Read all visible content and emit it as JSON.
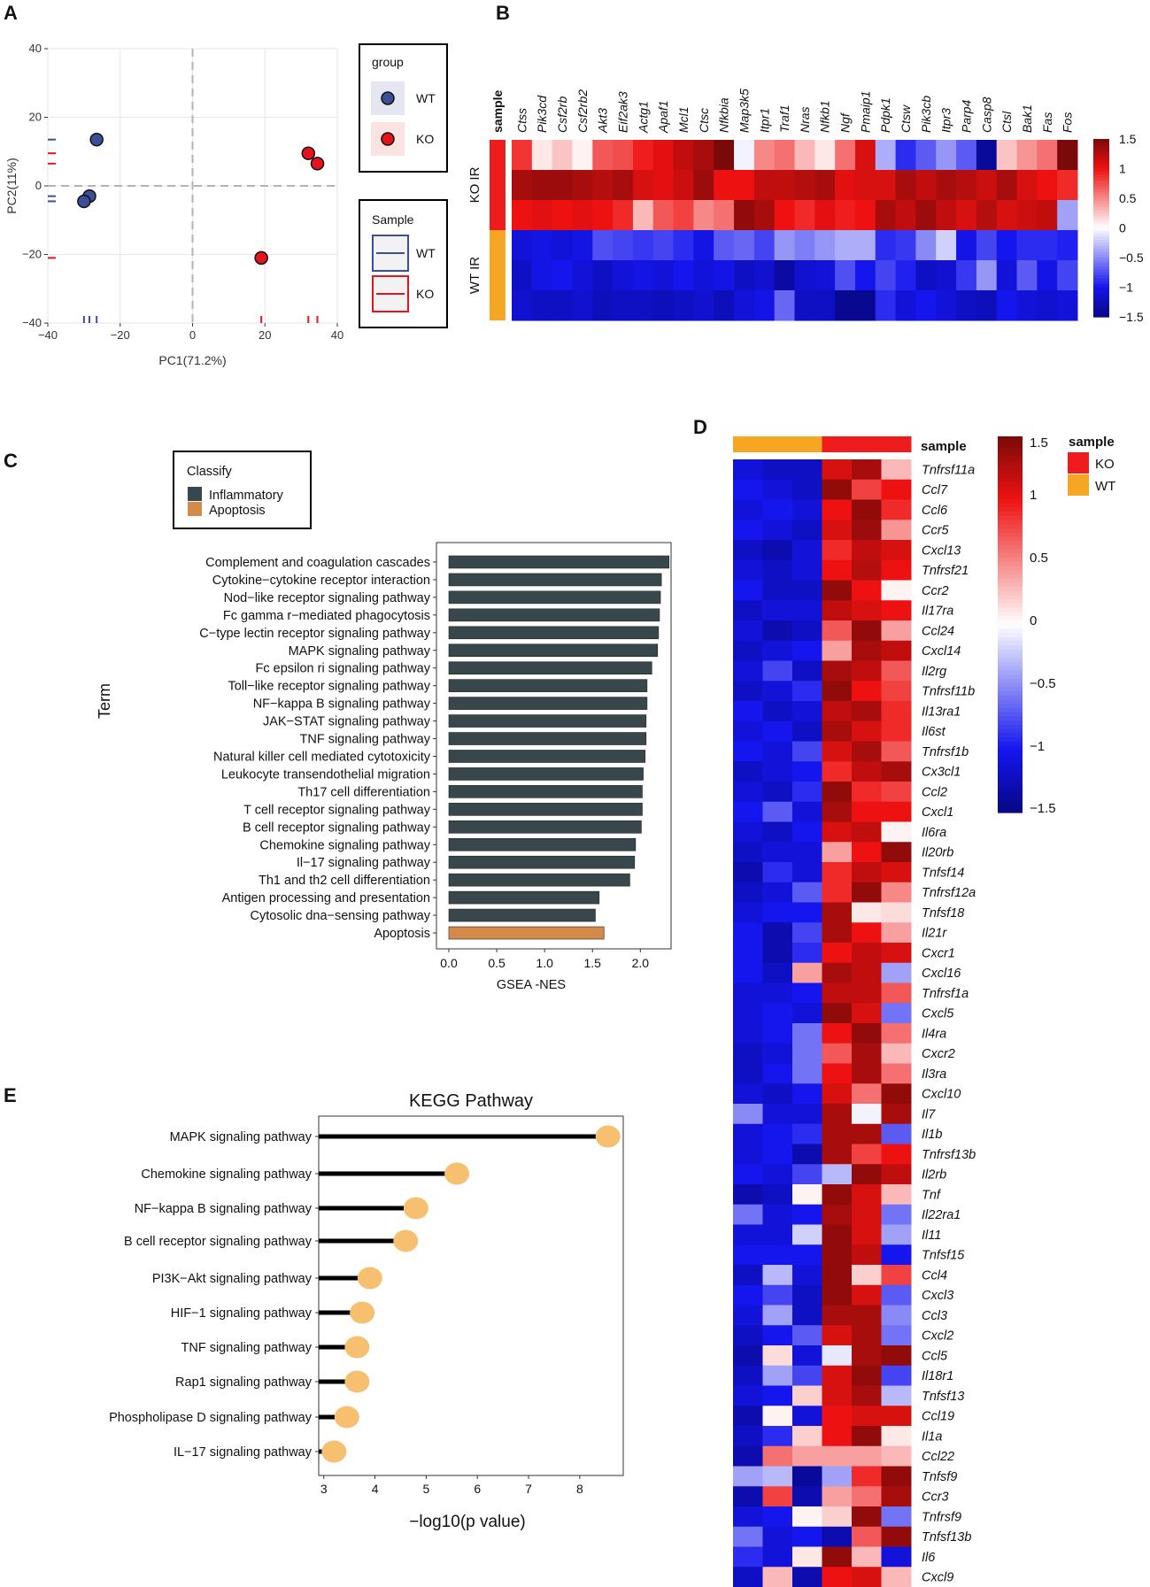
{
  "panel_labels": [
    "A",
    "B",
    "C",
    "D",
    "E"
  ],
  "chart_data": [
    {
      "panel": "A",
      "type": "scatter",
      "xlabel": "PC1(71.2%)",
      "ylabel": "PC2(11%)",
      "xlim": [
        -40,
        40
      ],
      "ylim": [
        -40,
        40
      ],
      "xticks": [
        -40,
        -20,
        0,
        20,
        40
      ],
      "yticks": [
        -40,
        -20,
        0,
        20,
        40
      ],
      "grid": true,
      "series": [
        {
          "name": "WT",
          "color": "#3a4f96",
          "points": [
            [
              -26.5,
              13.5
            ],
            [
              -28.5,
              -3
            ],
            [
              -30,
              -4.5
            ]
          ]
        },
        {
          "name": "KO",
          "color": "#e5141c",
          "points": [
            [
              32,
              9.5
            ],
            [
              34.5,
              6.5
            ],
            [
              19,
              -21
            ]
          ]
        }
      ],
      "legend_group": {
        "title": "group",
        "items": [
          "WT",
          "KO"
        ],
        "position": "right"
      },
      "legend_sample": {
        "title": "Sample",
        "items": [
          "WT",
          "KO"
        ],
        "position": "right"
      }
    },
    {
      "panel": "B",
      "type": "heatmap",
      "annotation_label": "sample",
      "genes": [
        "Ctss",
        "Pik3cd",
        "Csf2rb",
        "Csf2rb2",
        "Akt3",
        "Eif2ak3",
        "Actg1",
        "Apaf1",
        "Mcl1",
        "Ctsc",
        "Nfkbia",
        "Map3k5",
        "Itpr1",
        "Traf1",
        "Nras",
        "Nfkb1",
        "Ngf",
        "Pmaip1",
        "Pdpk1",
        "Ctsw",
        "Pik3cb",
        "Itpr3",
        "Parp4",
        "Casp8",
        "Ctsl",
        "Bak1",
        "Fas",
        "Fos"
      ],
      "row_groups": [
        {
          "label": "KO IR",
          "color": "#ee1c1c"
        },
        {
          "label": "WT IR",
          "color": "#f5a623"
        }
      ],
      "values": [
        [
          0.85,
          0.1,
          0.25,
          0.05,
          0.7,
          0.75,
          0.95,
          1.05,
          1.2,
          1.3,
          1.5,
          -0.05,
          0.5,
          0.6,
          0.3,
          0.1,
          0.6,
          1.1,
          -0.35,
          -0.9,
          -0.7,
          -0.45,
          -0.7,
          -1.4,
          0.25,
          0.45,
          0.6,
          1.5
        ],
        [
          1.3,
          1.35,
          1.35,
          1.3,
          1.25,
          1.3,
          1.1,
          1.05,
          1.15,
          1.35,
          1.0,
          1.0,
          1.2,
          1.2,
          1.25,
          1.3,
          1.05,
          1.1,
          1.1,
          1.3,
          1.2,
          1.3,
          1.25,
          1.15,
          1.3,
          1.1,
          1.0,
          0.9
        ],
        [
          1.0,
          1.05,
          1.0,
          1.05,
          1.0,
          0.9,
          0.3,
          0.7,
          0.8,
          0.5,
          0.6,
          1.4,
          1.3,
          1.0,
          0.9,
          1.05,
          0.95,
          1.0,
          1.3,
          1.2,
          1.35,
          1.2,
          1.1,
          1.25,
          1.1,
          1.15,
          1.2,
          -0.4
        ],
        [
          -1.1,
          -1.05,
          -1.1,
          -1.05,
          -0.75,
          -0.8,
          -0.85,
          -0.8,
          -0.9,
          -1.05,
          -0.7,
          -0.65,
          -0.8,
          -0.45,
          -0.55,
          -0.45,
          -0.35,
          -0.35,
          -0.9,
          -0.85,
          -0.5,
          -0.2,
          -1.05,
          -0.8,
          -1.0,
          -0.9,
          -0.9,
          -0.95
        ],
        [
          -1.2,
          -1.05,
          -1.0,
          -1.1,
          -1.2,
          -1.1,
          -1.05,
          -1.1,
          -1.0,
          -1.1,
          -1.05,
          -1.2,
          -1.15,
          -1.35,
          -1.15,
          -1.1,
          -0.75,
          -1.0,
          -0.8,
          -0.95,
          -1.2,
          -1.15,
          -0.85,
          -0.45,
          -1.1,
          -0.7,
          -1.05,
          -0.8
        ],
        [
          -1.15,
          -1.2,
          -1.2,
          -1.15,
          -1.25,
          -1.2,
          -1.2,
          -1.25,
          -1.2,
          -1.15,
          -1.25,
          -1.1,
          -1.05,
          -0.65,
          -1.2,
          -1.2,
          -1.45,
          -1.45,
          -0.9,
          -1.1,
          -1.0,
          -1.1,
          -1.2,
          -1.25,
          -1.0,
          -1.1,
          -1.15,
          -1.1
        ]
      ],
      "colorbar": {
        "min": -1.5,
        "max": 1.5,
        "ticks": [
          1.5,
          1,
          0.5,
          0,
          -0.5,
          -1,
          -1.5
        ],
        "tick_labels": [
          "1.5",
          "1",
          "0.5",
          "0",
          "−0.5",
          "−1",
          "−1.5"
        ],
        "low": "#0d0da6",
        "mid": "#ffffff",
        "high": "#e8121a",
        "top": "#8a0a0a"
      }
    },
    {
      "panel": "C",
      "type": "bar",
      "orientation": "horizontal",
      "ylabel": "Term",
      "xlabel": "GSEA -NES",
      "xlim": [
        0,
        2.45
      ],
      "xticks": [
        0.0,
        0.5,
        1.0,
        1.5,
        2.0
      ],
      "xtick_labels": [
        "0.0",
        "0.5",
        "1.0",
        "1.5",
        "2.0"
      ],
      "legend": {
        "title": "Classify",
        "items": [
          {
            "label": "Inflammatory",
            "color": "#37474c"
          },
          {
            "label": "Apoptosis",
            "color": "#d38a4b"
          }
        ],
        "position": "top-left"
      },
      "categories": [
        "Complement and coagulation cascades",
        "Cytokine−cytokine receptor interaction",
        "Nod−like receptor signaling pathway",
        "Fc gamma r−mediated phagocytosis",
        "C−type lectin receptor signaling pathway",
        "MAPK signaling pathway",
        "Fc epsilon ri signaling pathway",
        "Toll−like receptor signaling pathway",
        "NF−kappa B signaling pathway",
        "JAK−STAT signaling pathway",
        "TNF signaling pathway",
        "Natural killer cell mediated cytotoxicity",
        "Leukocyte transendothelial migration",
        "Th17 cell differentiation",
        "T cell receptor signaling pathway",
        "B cell receptor signaling pathway",
        "Chemokine signaling pathway",
        "Il−17 signaling pathway",
        "Th1 and th2 cell differentiation",
        "Antigen processing and presentation",
        "Cytosolic dna−sensing pathway",
        "Apoptosis"
      ],
      "values": [
        2.3,
        2.22,
        2.21,
        2.2,
        2.19,
        2.18,
        2.12,
        2.07,
        2.07,
        2.06,
        2.06,
        2.05,
        2.03,
        2.02,
        2.02,
        2.01,
        1.95,
        1.94,
        1.89,
        1.57,
        1.53,
        1.62
      ],
      "classes": [
        "Inflammatory",
        "Inflammatory",
        "Inflammatory",
        "Inflammatory",
        "Inflammatory",
        "Inflammatory",
        "Inflammatory",
        "Inflammatory",
        "Inflammatory",
        "Inflammatory",
        "Inflammatory",
        "Inflammatory",
        "Inflammatory",
        "Inflammatory",
        "Inflammatory",
        "Inflammatory",
        "Inflammatory",
        "Inflammatory",
        "Inflammatory",
        "Inflammatory",
        "Inflammatory",
        "Apoptosis"
      ]
    },
    {
      "panel": "D",
      "type": "heatmap",
      "annotation_label": "sample",
      "columns": [
        "WT",
        "WT",
        "WT",
        "KO",
        "KO",
        "KO"
      ],
      "genes": [
        "Tnfrsf11a",
        "Ccl7",
        "Ccl6",
        "Ccr5",
        "Cxcl13",
        "Tnfrsf21",
        "Ccr2",
        "Il17ra",
        "Ccl24",
        "Cxcl14",
        "Il2rg",
        "Tnfrsf11b",
        "Il13ra1",
        "Il6st",
        "Tnfrsf1b",
        "Cx3cl1",
        "Ccl2",
        "Cxcl1",
        "Il6ra",
        "Il20rb",
        "Tnfsf14",
        "Tnfrsf12a",
        "Tnfsf18",
        "Il21r",
        "Cxcr1",
        "Cxcl16",
        "Tnfrsf1a",
        "Cxcl5",
        "Il4ra",
        "Cxcr2",
        "Il3ra",
        "Cxcl10",
        "Il7",
        "Il1b",
        "Tnfrsf13b",
        "Il2rb",
        "Tnf",
        "Il22ra1",
        "Il11",
        "Tnfsf15",
        "Ccl4",
        "Cxcl3",
        "Ccl3",
        "Cxcl2",
        "Ccl5",
        "Il18r1",
        "Tnfsf13",
        "Ccl19",
        "Il1a",
        "Ccl22",
        "Tnfsf9",
        "Ccr3",
        "Tnfrsf9",
        "Tnfsf13b",
        "Il6",
        "Cxcl9"
      ],
      "values": [
        [
          -1.1,
          -1.2,
          -1.2,
          1.1,
          1.3,
          0.3
        ],
        [
          -1.0,
          -1.1,
          -1.2,
          1.4,
          0.8,
          1.0
        ],
        [
          -1.1,
          -1.0,
          -1.1,
          1.0,
          1.4,
          0.9
        ],
        [
          -1.0,
          -1.1,
          -1.2,
          1.1,
          1.35,
          0.45
        ],
        [
          -1.2,
          -1.3,
          -1.1,
          0.9,
          1.2,
          1.1
        ],
        [
          -1.1,
          -1.2,
          -1.1,
          1.0,
          1.25,
          1.0
        ],
        [
          -1.0,
          -1.2,
          -1.2,
          1.4,
          1.0,
          0.05
        ],
        [
          -1.2,
          -1.1,
          -1.1,
          1.2,
          1.1,
          1.0
        ],
        [
          -1.1,
          -1.3,
          -1.2,
          0.7,
          1.4,
          0.4
        ],
        [
          -1.2,
          -1.1,
          -1.0,
          0.4,
          1.3,
          1.2
        ],
        [
          -1.1,
          -0.8,
          -1.2,
          1.3,
          1.2,
          0.7
        ],
        [
          -1.2,
          -1.1,
          -0.9,
          1.4,
          1.0,
          0.8
        ],
        [
          -1.0,
          -1.2,
          -1.1,
          1.2,
          1.3,
          0.9
        ],
        [
          -1.1,
          -1.0,
          -1.2,
          1.3,
          1.1,
          0.9
        ],
        [
          -1.0,
          -1.1,
          -0.8,
          1.1,
          1.3,
          0.7
        ],
        [
          -1.2,
          -1.1,
          -1.0,
          0.9,
          1.2,
          1.3
        ],
        [
          -1.1,
          -1.2,
          -0.9,
          1.4,
          0.9,
          0.8
        ],
        [
          -1.0,
          -0.7,
          -1.1,
          1.3,
          1.0,
          1.0
        ],
        [
          -1.1,
          -1.2,
          -1.0,
          1.1,
          1.2,
          0.05
        ],
        [
          -1.2,
          -1.1,
          -1.1,
          0.4,
          1.0,
          1.4
        ],
        [
          -1.3,
          -0.9,
          -1.1,
          0.9,
          1.2,
          1.1
        ],
        [
          -1.2,
          -1.1,
          -0.7,
          0.9,
          1.4,
          0.5
        ],
        [
          -1.1,
          -1.0,
          -1.0,
          1.3,
          0.1,
          0.15
        ],
        [
          -1.0,
          -1.3,
          -0.8,
          1.3,
          1.0,
          0.4
        ],
        [
          -1.0,
          -1.3,
          -0.9,
          1.0,
          1.2,
          1.1
        ],
        [
          -1.0,
          -1.2,
          0.4,
          1.3,
          1.2,
          -0.4
        ],
        [
          -1.1,
          -1.1,
          -1.0,
          1.2,
          1.2,
          0.7
        ],
        [
          -1.1,
          -1.0,
          -1.1,
          1.4,
          1.1,
          -0.6
        ],
        [
          -1.1,
          -1.0,
          -0.6,
          1.0,
          1.4,
          0.6
        ],
        [
          -1.2,
          -1.1,
          -0.6,
          0.7,
          1.3,
          0.3
        ],
        [
          -1.2,
          -1.0,
          -0.6,
          1.0,
          1.3,
          0.6
        ],
        [
          -1.1,
          -1.2,
          -1.0,
          1.1,
          0.6,
          1.4
        ],
        [
          -0.5,
          -1.1,
          -1.1,
          1.3,
          -0.05,
          1.3
        ],
        [
          -1.1,
          -1.0,
          -0.9,
          1.3,
          1.3,
          -0.7
        ],
        [
          -1.1,
          -1.0,
          -1.3,
          1.3,
          0.8,
          1.0
        ],
        [
          -1.0,
          -1.1,
          -0.8,
          -0.3,
          1.4,
          1.2
        ],
        [
          -1.3,
          -1.2,
          0.05,
          1.4,
          1.1,
          0.3
        ],
        [
          -0.6,
          -1.1,
          -1.0,
          1.3,
          1.1,
          -0.6
        ],
        [
          -1.1,
          -1.1,
          -0.2,
          1.4,
          1.1,
          -0.4
        ],
        [
          -1.0,
          -1.0,
          -1.0,
          1.4,
          1.2,
          -1.0
        ],
        [
          -1.2,
          -0.3,
          -1.1,
          1.4,
          0.2,
          0.8
        ],
        [
          -1.0,
          -0.8,
          -1.2,
          1.4,
          1.1,
          -0.7
        ],
        [
          -1.1,
          -0.4,
          -1.2,
          1.3,
          1.3,
          -0.5
        ],
        [
          -1.2,
          -1.0,
          -0.7,
          1.1,
          1.3,
          -0.6
        ],
        [
          -1.3,
          0.15,
          -1.1,
          -0.1,
          1.3,
          1.4
        ],
        [
          -1.2,
          -0.4,
          -0.8,
          1.1,
          1.4,
          -0.8
        ],
        [
          -1.1,
          -1.0,
          0.2,
          1.1,
          1.3,
          -0.3
        ],
        [
          -1.3,
          0.05,
          -1.1,
          1.0,
          1.1,
          1.1
        ],
        [
          -1.2,
          -0.9,
          0.2,
          1.0,
          1.4,
          0.1
        ],
        [
          -1.3,
          0.6,
          0.4,
          0.4,
          0.4,
          0.3
        ],
        [
          -0.4,
          -0.3,
          -1.4,
          -0.4,
          0.9,
          1.4
        ],
        [
          -1.3,
          0.8,
          -1.3,
          0.4,
          0.6,
          1.3
        ],
        [
          -1.1,
          -1.0,
          0.05,
          0.2,
          1.4,
          -0.6
        ],
        [
          -0.6,
          -1.1,
          -1.0,
          -1.3,
          0.7,
          1.4
        ],
        [
          -0.9,
          -1.1,
          0.1,
          1.4,
          0.3,
          -1.1
        ],
        [
          -1.2,
          0.3,
          -1.3,
          1.0,
          1.1,
          0.3
        ]
      ],
      "colorbar": {
        "min": -1.5,
        "max": 1.5,
        "ticks": [
          1.5,
          1,
          0.5,
          0,
          -0.5,
          -1,
          -1.5
        ],
        "tick_labels": [
          "1.5",
          "1",
          "0.5",
          "0",
          "−0.5",
          "−1",
          "−1.5"
        ]
      },
      "legend": {
        "title": "sample",
        "items": [
          {
            "label": "KO",
            "color": "#ee1c1c"
          },
          {
            "label": "WT",
            "color": "#f5a623"
          }
        ],
        "position": "top-right"
      }
    },
    {
      "panel": "E",
      "type": "scatter",
      "style": "lollipop",
      "title": "KEGG Pathway",
      "xlabel": "−log10(p value)",
      "xlim": [
        2.9,
        8.85
      ],
      "xticks": [
        3,
        4,
        5,
        6,
        7,
        8
      ],
      "categories": [
        "MAPK signaling pathway",
        "Chemokine signaling pathway",
        "NF−kappa B signaling pathway",
        "B cell receptor signaling pathway",
        "PI3K−Akt signaling pathway",
        "HIF−1 signaling pathway",
        "TNF signaling pathway",
        "Rap1 signaling pathway",
        "Phospholipase D signaling pathway",
        "IL−17 signaling pathway"
      ],
      "values": [
        8.55,
        5.6,
        4.8,
        4.6,
        3.9,
        3.75,
        3.65,
        3.65,
        3.45,
        3.2
      ],
      "point_color": "#f7c070"
    }
  ]
}
